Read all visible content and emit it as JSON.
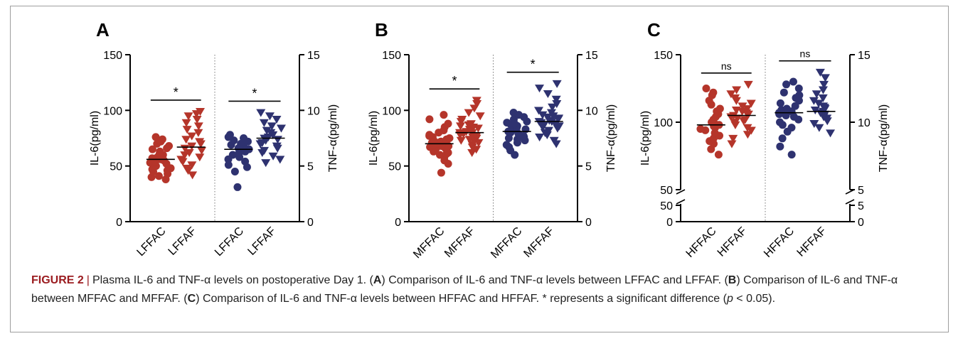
{
  "figure": {
    "label": "FIGURE 2",
    "separator": "|",
    "caption_parts": [
      {
        "t": "Plasma IL-6 and TNF-α levels on postoperative Day 1. (",
        "b": false
      },
      {
        "t": "A",
        "b": true
      },
      {
        "t": ") Comparison of IL-6 and TNF-α levels between LFFAC and LFFAF. (",
        "b": false
      },
      {
        "t": "B",
        "b": true
      },
      {
        "t": ") Comparison of IL-6 and TNF-α between MFFAC and MFFAF. (",
        "b": false
      },
      {
        "t": "C",
        "b": true
      },
      {
        "t": ") Comparison of IL-6 and TNF-α levels between HFFAC and HFFAF. * represents a significant difference (",
        "b": false
      },
      {
        "t": "p",
        "b": false,
        "i": true
      },
      {
        "t": " < 0.05).",
        "b": false
      }
    ]
  },
  "colors": {
    "red": "#b5352a",
    "navy": "#2e3270",
    "axis": "#000000",
    "divider": "#777777"
  },
  "chart_data": [
    {
      "type": "scatter",
      "panel_label": "A",
      "ylabel_left": "IL-6(pg/ml)",
      "ylabel_right": "TNF-α(pg/ml)",
      "ylim_left": [
        0,
        150
      ],
      "ylim_right": [
        0,
        15
      ],
      "yticks_left": [
        "0",
        "50",
        "100",
        "150"
      ],
      "yticks_right": [
        "0",
        "5",
        "10",
        "15"
      ],
      "categories": [
        "LFFAC",
        "LFFAF",
        "LFFAC",
        "LFFAF"
      ],
      "significance": [
        "*",
        "*"
      ],
      "groups": [
        {
          "category": "LFFAC",
          "axis": "left",
          "color": "red",
          "marker": "circle",
          "mean": 56,
          "values": [
            38,
            40,
            41,
            43,
            45,
            46,
            47,
            48,
            50,
            52,
            53,
            54,
            55,
            56,
            57,
            58,
            60,
            61,
            63,
            65,
            66,
            68,
            70,
            72,
            74,
            76
          ]
        },
        {
          "category": "LFFAF",
          "axis": "left",
          "color": "red",
          "marker": "triangle",
          "mean": 67,
          "values": [
            42,
            46,
            48,
            51,
            54,
            56,
            58,
            60,
            62,
            64,
            66,
            68,
            70,
            72,
            74,
            77,
            80,
            83,
            86,
            89,
            92,
            95,
            97,
            99
          ]
        },
        {
          "category": "LFFAC",
          "axis": "right",
          "color": "navy",
          "marker": "circle",
          "mean": 6.5,
          "values": [
            3.1,
            4.5,
            4.9,
            5.1,
            5.4,
            5.6,
            5.8,
            6.0,
            6.1,
            6.3,
            6.4,
            6.5,
            6.6,
            6.8,
            6.9,
            7.0,
            7.2,
            7.3,
            7.5,
            7.6,
            7.8
          ]
        },
        {
          "category": "LFFAF",
          "axis": "right",
          "color": "navy",
          "marker": "triangle",
          "mean": 7.5,
          "values": [
            5.3,
            5.6,
            5.9,
            6.2,
            6.4,
            6.6,
            6.8,
            7.0,
            7.1,
            7.3,
            7.4,
            7.5,
            7.6,
            7.8,
            8.0,
            8.2,
            8.4,
            8.6,
            8.9,
            9.2,
            9.5,
            9.8
          ]
        }
      ]
    },
    {
      "type": "scatter",
      "panel_label": "B",
      "ylabel_left": "IL-6(pg/ml)",
      "ylabel_right": "TNF-α(pg/ml)",
      "ylim_left": [
        0,
        150
      ],
      "ylim_right": [
        0,
        15
      ],
      "yticks_left": [
        "0",
        "50",
        "100",
        "150"
      ],
      "yticks_right": [
        "0",
        "5",
        "10",
        "15"
      ],
      "categories": [
        "MFFAC",
        "MFFAF",
        "MFFAC",
        "MFFAF"
      ],
      "significance": [
        "*",
        "*"
      ],
      "groups": [
        {
          "category": "MFFAC",
          "axis": "left",
          "color": "red",
          "marker": "circle",
          "mean": 70,
          "values": [
            44,
            52,
            55,
            58,
            60,
            61,
            62,
            63,
            64,
            65,
            66,
            66,
            67,
            68,
            68,
            69,
            70,
            70,
            71,
            72,
            72,
            73,
            74,
            75,
            76,
            77,
            78,
            80,
            82,
            85,
            88,
            92,
            96
          ]
        },
        {
          "category": "MFFAF",
          "axis": "left",
          "color": "red",
          "marker": "triangle",
          "mean": 80,
          "values": [
            62,
            65,
            67,
            69,
            71,
            72,
            73,
            74,
            75,
            76,
            77,
            78,
            79,
            80,
            80,
            81,
            82,
            83,
            84,
            85,
            86,
            87,
            88,
            90,
            92,
            95,
            98,
            102,
            106,
            109
          ]
        },
        {
          "category": "MFFAC",
          "axis": "right",
          "color": "navy",
          "marker": "circle",
          "mean": 8.1,
          "values": [
            6.0,
            6.4,
            6.7,
            6.9,
            7.1,
            7.3,
            7.4,
            7.5,
            7.6,
            7.7,
            7.8,
            7.9,
            8.0,
            8.1,
            8.2,
            8.3,
            8.4,
            8.5,
            8.6,
            8.7,
            8.8,
            8.9,
            9.0,
            9.2,
            9.4,
            9.6,
            9.8
          ]
        },
        {
          "category": "MFFAF",
          "axis": "right",
          "color": "navy",
          "marker": "triangle",
          "mean": 9.0,
          "values": [
            7.0,
            7.3,
            7.6,
            7.8,
            8.0,
            8.2,
            8.4,
            8.5,
            8.6,
            8.7,
            8.8,
            8.9,
            9.0,
            9.0,
            9.1,
            9.2,
            9.3,
            9.4,
            9.5,
            9.6,
            9.8,
            10.0,
            10.3,
            10.6,
            11.0,
            11.5,
            12.0,
            12.4
          ]
        }
      ]
    },
    {
      "type": "scatter",
      "panel_label": "C",
      "ylabel_left": "IL-6(pg/ml)",
      "ylabel_right": "TNF-α(pg/ml)",
      "ylim_left": [
        50,
        150
      ],
      "ylim_right": [
        5,
        15
      ],
      "yticks_left": [
        "50",
        "100",
        "150"
      ],
      "yticks_right": [
        "5",
        "10",
        "15"
      ],
      "broken_axis": true,
      "lower_ticks_left": [
        "0",
        "50"
      ],
      "lower_ticks_right": [
        "0",
        "5"
      ],
      "categories": [
        "HFFAC",
        "HFFAF",
        "HFFAC",
        "HFFAF"
      ],
      "significance": [
        "ns",
        "ns"
      ],
      "groups": [
        {
          "category": "HFFAC",
          "axis": "left",
          "color": "red",
          "marker": "circle",
          "mean": 98,
          "values": [
            76,
            80,
            84,
            86,
            88,
            90,
            92,
            94,
            95,
            96,
            97,
            98,
            99,
            100,
            102,
            104,
            106,
            108,
            110,
            113,
            116,
            120,
            122,
            125
          ]
        },
        {
          "category": "HFFAF",
          "axis": "left",
          "color": "red",
          "marker": "triangle",
          "mean": 105,
          "values": [
            84,
            88,
            91,
            94,
            96,
            98,
            100,
            101,
            102,
            103,
            104,
            105,
            106,
            107,
            108,
            109,
            110,
            112,
            114,
            116,
            118,
            121,
            124,
            128
          ]
        },
        {
          "category": "HFFAC",
          "axis": "right",
          "color": "navy",
          "marker": "circle",
          "mean": 10.7,
          "values": [
            7.6,
            8.2,
            8.8,
            9.3,
            9.6,
            9.8,
            10.0,
            10.2,
            10.4,
            10.5,
            10.6,
            10.7,
            10.8,
            10.9,
            11.0,
            11.2,
            11.4,
            11.6,
            11.8,
            12.0,
            12.2,
            12.5,
            12.8,
            13.0
          ]
        },
        {
          "category": "HFFAF",
          "axis": "right",
          "color": "navy",
          "marker": "triangle",
          "mean": 10.8,
          "values": [
            9.2,
            9.6,
            9.9,
            10.1,
            10.3,
            10.4,
            10.5,
            10.6,
            10.7,
            10.8,
            10.9,
            11.0,
            11.1,
            11.2,
            11.4,
            11.6,
            11.8,
            12.1,
            12.4,
            12.8,
            13.3,
            13.7
          ]
        }
      ]
    }
  ]
}
